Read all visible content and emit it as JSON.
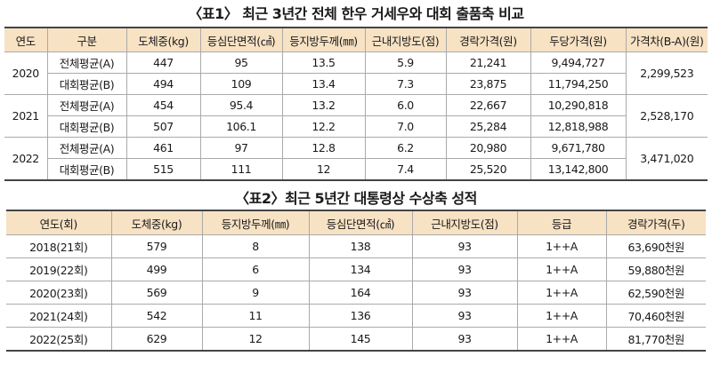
{
  "table1": {
    "title": "〈표1〉 최근 3년간 전체 한우 거세우와 대회 출품축 비교",
    "headers": [
      "연도",
      "구분",
      "도체중(kg)",
      "등심단면적(㎠)",
      "등지방두께(㎜)",
      "근내지방도(점)",
      "경락가격(원)",
      "두당가격(원)",
      "가격차(B-A)(원)"
    ],
    "groups": [
      {
        "year": "2020",
        "diff": "2,299,523",
        "rows": [
          [
            "전체평균(A)",
            "447",
            "95",
            "13.5",
            "5.9",
            "21,241",
            "9,494,727"
          ],
          [
            "대회평균(B)",
            "494",
            "109",
            "13.4",
            "7.3",
            "23,875",
            "11,794,250"
          ]
        ]
      },
      {
        "year": "2021",
        "diff": "2,528,170",
        "rows": [
          [
            "전체평균(A)",
            "454",
            "95.4",
            "13.2",
            "6.0",
            "22,667",
            "10,290,818"
          ],
          [
            "대회평균(B)",
            "507",
            "106.1",
            "12.2",
            "7.0",
            "25,284",
            "12,818,988"
          ]
        ]
      },
      {
        "year": "2022",
        "diff": "3,471,020",
        "rows": [
          [
            "전체평균(A)",
            "461",
            "97",
            "12.8",
            "6.2",
            "20,980",
            "9,671,780"
          ],
          [
            "대회평균(B)",
            "515",
            "111",
            "12",
            "7.4",
            "25,520",
            "13,142,800"
          ]
        ]
      }
    ]
  },
  "table2": {
    "title": "〈표2〉최근 5년간 대통령상 수상축 성적",
    "headers": [
      "연도(회)",
      "도체중(kg)",
      "등지방두께(㎜)",
      "등심단면적(㎠)",
      "근내지방도(점)",
      "등급",
      "경락가격(두)"
    ],
    "rows": [
      [
        "2018(21회)",
        "579",
        "8",
        "138",
        "93",
        "1++A",
        "63,690천원"
      ],
      [
        "2019(22회)",
        "499",
        "6",
        "134",
        "93",
        "1++A",
        "59,880천원"
      ],
      [
        "2020(23회)",
        "569",
        "9",
        "164",
        "93",
        "1++A",
        "62,590천원"
      ],
      [
        "2021(24회)",
        "542",
        "11",
        "136",
        "93",
        "1++A",
        "70,460천원"
      ],
      [
        "2022(25회)",
        "629",
        "12",
        "145",
        "93",
        "1++A",
        "81,770천원"
      ]
    ]
  }
}
